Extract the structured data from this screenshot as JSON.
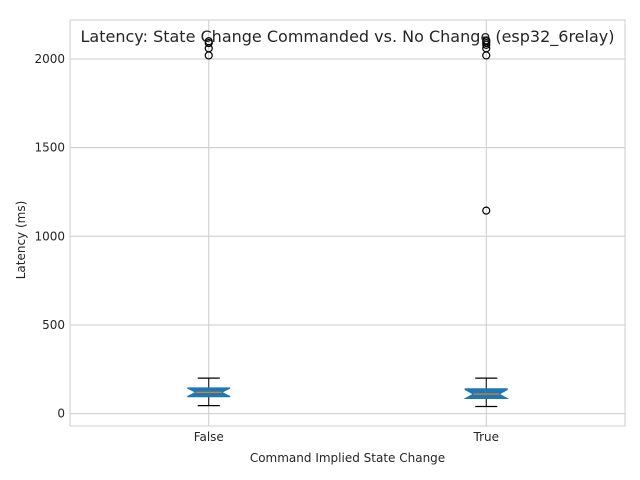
{
  "chart_data": {
    "type": "box",
    "title": "Latency: State Change Commanded vs. No Change (esp32_6relay)",
    "xlabel": "Command Implied State Change",
    "ylabel": "Latency (ms)",
    "ylim": [
      -70,
      2220
    ],
    "yticks": [
      0,
      500,
      1000,
      1500,
      2000
    ],
    "grid": true,
    "categories": [
      "False",
      "True"
    ],
    "boxes": [
      {
        "label": "False",
        "whisker_low": 45,
        "q1": 95,
        "median": 120,
        "q3": 145,
        "whisker_high": 200,
        "notched": true,
        "fliers": [
          2020,
          2060,
          2090,
          2100
        ]
      },
      {
        "label": "True",
        "whisker_low": 40,
        "q1": 85,
        "median": 110,
        "q3": 140,
        "whisker_high": 200,
        "notched": true,
        "fliers": [
          1145,
          2020,
          2060,
          2080,
          2090,
          2100,
          2105
        ]
      }
    ],
    "colors": {
      "box": "#1f77b4",
      "median": "#ff7f0e",
      "whisker": "#000000",
      "grid": "#cccccc"
    }
  }
}
